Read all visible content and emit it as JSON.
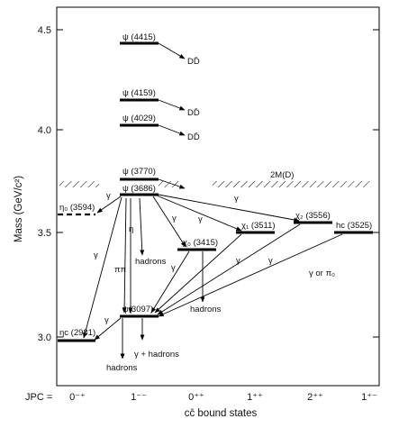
{
  "y_axis": {
    "title": "Mass (GeV/c²)",
    "ticks": [
      "4.5",
      "4.0",
      "3.5",
      "3.0"
    ]
  },
  "x_axis": {
    "title": "cc̄ bound states",
    "jpc_label": "JPC =",
    "jpc_values": [
      "0⁻⁺",
      "1⁻⁻",
      "0⁺⁺",
      "1⁺⁺",
      "2⁺⁺",
      "1⁺⁻"
    ]
  },
  "threshold_label": "2M(D)",
  "states": [
    {
      "id": "psi4415",
      "label": "ψ (4415)"
    },
    {
      "id": "psi4159",
      "label": "ψ (4159)"
    },
    {
      "id": "psi4029",
      "label": "ψ (4029)"
    },
    {
      "id": "psi3770",
      "label": "ψ (3770)"
    },
    {
      "id": "psi3686",
      "label": "ψ (3686)"
    },
    {
      "id": "etac3594",
      "label": "η₀ (3594)"
    },
    {
      "id": "chi0",
      "label": "χ₀ (3415)"
    },
    {
      "id": "chi1",
      "label": "χ₁ (3511)"
    },
    {
      "id": "chi2",
      "label": "χ₂ (3556)"
    },
    {
      "id": "hc",
      "label": "hc (3525)"
    },
    {
      "id": "jpsi",
      "label": "ψ(3097)"
    },
    {
      "id": "etac2981",
      "label": "ηc (2981)"
    }
  ],
  "decay_labels": {
    "dd": "DD̄",
    "gamma": "γ",
    "eta": "η",
    "pipi": "ππ",
    "hadrons": "hadrons",
    "gamma_hadrons": "γ + hadrons",
    "gamma_or_pi0": "γ or π₀"
  }
}
